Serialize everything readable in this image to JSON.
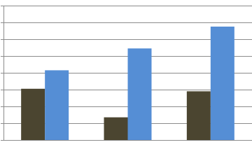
{
  "chart_data": {
    "type": "bar",
    "categories": [
      null,
      null,
      null
    ],
    "series": [
      {
        "color": "#4b4530",
        "values": [
          3.05,
          1.35,
          2.9
        ]
      },
      {
        "color": "#558ed5",
        "values": [
          4.15,
          5.45,
          6.75
        ]
      }
    ],
    "ylim": [
      0,
      8
    ],
    "yticks": [
      0,
      1,
      2,
      3,
      4,
      5,
      6,
      7,
      8
    ],
    "grid": true
  }
}
